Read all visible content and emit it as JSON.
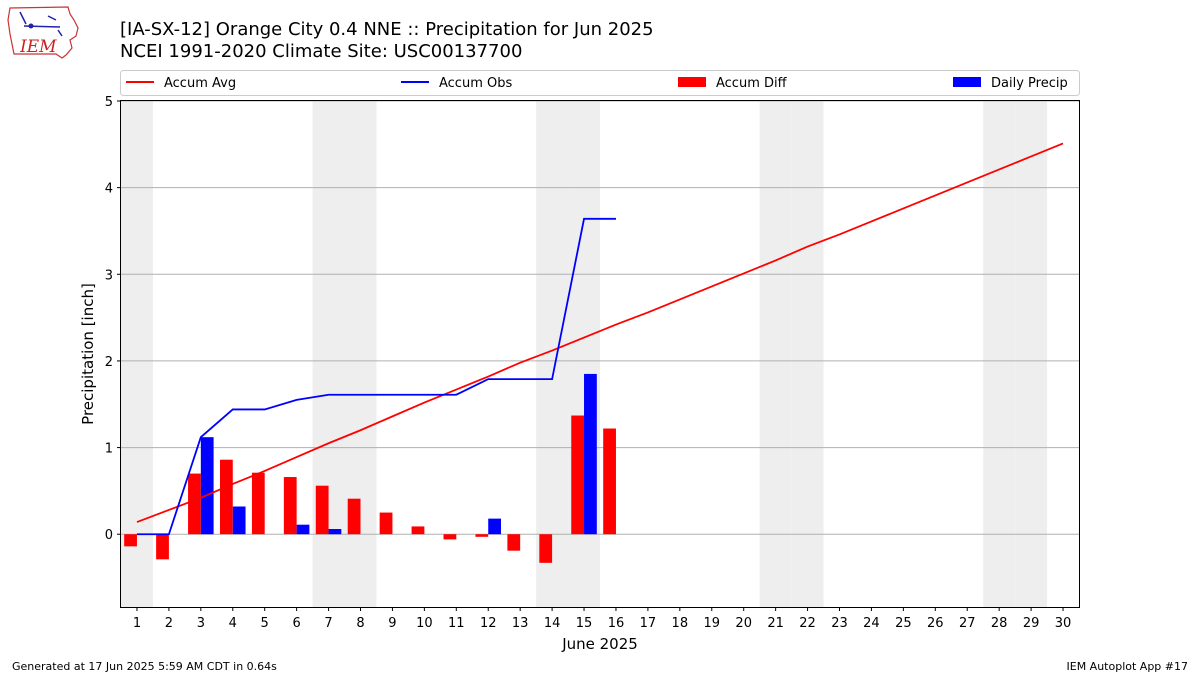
{
  "header": {
    "logo_text": "IEM",
    "title_line1": "[IA-SX-12] Orange City 0.4 NNE :: Precipitation for Jun 2025",
    "title_line2": "NCEI 1991-2020 Climate Site: USC00137700"
  },
  "legend": {
    "placement": "top, full width, single row",
    "items": [
      {
        "label": "Accum Avg",
        "kind": "line",
        "color": "#ff0000"
      },
      {
        "label": "Accum Obs",
        "kind": "line",
        "color": "#0000ff"
      },
      {
        "label": "Accum Diff",
        "kind": "bar",
        "color": "#ff0000"
      },
      {
        "label": "Daily Precip",
        "kind": "bar",
        "color": "#0000ff"
      }
    ]
  },
  "footer": {
    "left": "Generated at 17 Jun 2025 5:59 AM CDT in 0.64s",
    "right": "IEM Autoplot App #17"
  },
  "chart_data": {
    "type": "bar",
    "title": "[IA-SX-12] Orange City 0.4 NNE :: Precipitation for Jun 2025",
    "subtitle": "NCEI 1991-2020 Climate Site: USC00137700",
    "xlabel": "June 2025",
    "ylabel": "Precipitation [inch]",
    "xlim": [
      0.5,
      30.5
    ],
    "ylim": [
      -0.84,
      5
    ],
    "yticks": [
      0,
      1,
      2,
      3,
      4,
      5
    ],
    "grid": "horizontal",
    "weekend_shading_days": [
      1,
      7,
      8,
      14,
      15,
      21,
      22,
      28,
      29
    ],
    "shade_color": "#eeeeee",
    "x": [
      1,
      2,
      3,
      4,
      5,
      6,
      7,
      8,
      9,
      10,
      11,
      12,
      13,
      14,
      15,
      16,
      17,
      18,
      19,
      20,
      21,
      22,
      23,
      24,
      25,
      26,
      27,
      28,
      29,
      30
    ],
    "series": [
      {
        "name": "Accum Avg",
        "kind": "line",
        "color": "#ff0000",
        "x": [
          1,
          2,
          3,
          4,
          5,
          6,
          7,
          8,
          9,
          10,
          11,
          12,
          13,
          14,
          15,
          16,
          17,
          18,
          19,
          20,
          21,
          22,
          23,
          24,
          25,
          26,
          27,
          28,
          29,
          30
        ],
        "values": [
          0.14,
          0.28,
          0.42,
          0.58,
          0.73,
          0.89,
          1.05,
          1.2,
          1.36,
          1.52,
          1.67,
          1.82,
          1.98,
          2.12,
          2.27,
          2.42,
          2.56,
          2.71,
          2.86,
          3.01,
          3.16,
          3.32,
          3.46,
          3.61,
          3.76,
          3.91,
          4.06,
          4.21,
          4.36,
          4.51
        ]
      },
      {
        "name": "Accum Obs",
        "kind": "line",
        "color": "#0000ff",
        "x": [
          1,
          2,
          3,
          4,
          5,
          6,
          7,
          8,
          9,
          10,
          11,
          12,
          13,
          14,
          15,
          16
        ],
        "values": [
          0,
          0,
          1.12,
          1.44,
          1.44,
          1.55,
          1.61,
          1.61,
          1.61,
          1.61,
          1.61,
          1.79,
          1.79,
          1.79,
          3.64,
          3.64
        ]
      },
      {
        "name": "Accum Diff",
        "kind": "bar",
        "color": "#ff0000",
        "x": [
          1,
          2,
          3,
          4,
          5,
          6,
          7,
          8,
          9,
          10,
          11,
          12,
          13,
          14,
          15,
          16
        ],
        "values": [
          -0.14,
          -0.29,
          0.7,
          0.86,
          0.71,
          0.66,
          0.56,
          0.41,
          0.25,
          0.09,
          -0.06,
          -0.03,
          -0.19,
          -0.33,
          1.37,
          1.22
        ]
      },
      {
        "name": "Daily Precip",
        "kind": "bar",
        "color": "#0000ff",
        "x": [
          1,
          2,
          3,
          4,
          5,
          6,
          7,
          8,
          9,
          10,
          11,
          12,
          13,
          14,
          15,
          16
        ],
        "values": [
          0,
          0,
          1.12,
          0.32,
          0,
          0.11,
          0.06,
          0,
          0,
          0,
          0,
          0.18,
          0,
          0,
          1.85,
          0
        ]
      }
    ]
  }
}
